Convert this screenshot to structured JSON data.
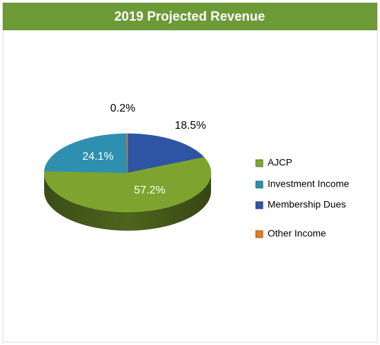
{
  "chart_data": {
    "type": "pie",
    "title": "2019 Projected Revenue",
    "categories": [
      "AJCP",
      "Investment Income",
      "Membership Dues",
      "Other Income"
    ],
    "values": [
      57.2,
      24.1,
      18.5,
      0.2
    ],
    "value_labels": [
      "57.2%",
      "24.1%",
      "18.5%",
      "0.2%"
    ],
    "colors": [
      "#7ea42f",
      "#2f8fb0",
      "#2d55a3",
      "#e07c22"
    ],
    "legend": "right"
  }
}
